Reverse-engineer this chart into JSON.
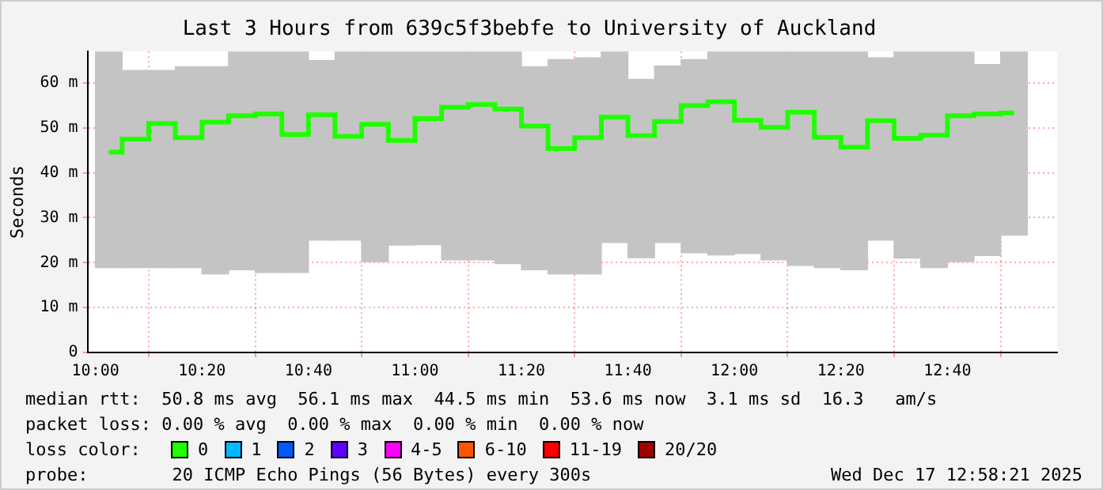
{
  "chart_data": {
    "type": "bar",
    "title": "Last 3 Hours from 639c5f3bebfe to University of Auckland",
    "ylabel": "Seconds",
    "x": [
      10.0417,
      10.125,
      10.2083,
      10.2917,
      10.375,
      10.4583,
      10.5417,
      10.625,
      10.7083,
      10.7917,
      10.875,
      10.9583,
      11.0417,
      11.125,
      11.2083,
      11.2917,
      11.375,
      11.4583,
      11.5417,
      11.625,
      11.7083,
      11.7917,
      11.875,
      11.9583,
      12.0417,
      12.125,
      12.2083,
      12.2917,
      12.375,
      12.4583,
      12.5417,
      12.625,
      12.7083,
      12.7917,
      12.875
    ],
    "series": [
      {
        "color": "#c4c4c4",
        "base": [
          18.9,
          18.9,
          18.9,
          18.9,
          17.5,
          18.4,
          17.8,
          17.8,
          25.0,
          25.0,
          20.2,
          23.9,
          24.0,
          20.6,
          20.6,
          19.8,
          18.4,
          17.5,
          17.5,
          24.5,
          21.1,
          24.5,
          22.2,
          21.7,
          22.0,
          20.6,
          19.4,
          18.9,
          18.4,
          25.0,
          21.0,
          18.9,
          20.2,
          21.6,
          26.1
        ],
        "values": [
          48.1,
          43.9,
          43.9,
          44.7,
          46.1,
          48.6,
          49.2,
          49.2,
          40.0,
          42.0,
          46.8,
          43.1,
          43.0,
          46.4,
          46.4,
          47.2,
          45.2,
          47.7,
          48.1,
          42.5,
          39.7,
          39.3,
          43.0,
          45.3,
          45.0,
          46.4,
          47.6,
          48.1,
          48.6,
          40.6,
          46.0,
          48.1,
          46.8,
          42.5,
          40.9
        ]
      },
      {
        "type": "step",
        "color": "#20ff00",
        "values": [
          44.6,
          47.5,
          51.0,
          47.8,
          51.3,
          52.7,
          53.1,
          48.5,
          52.9,
          48.1,
          50.8,
          47.2,
          52.1,
          54.6,
          55.2,
          54.2,
          50.4,
          45.4,
          47.8,
          52.4,
          48.3,
          51.4,
          55.0,
          55.8,
          51.7,
          50.1,
          53.5,
          47.9,
          45.7,
          51.6,
          47.7,
          48.4,
          52.7,
          53.1,
          53.3
        ]
      }
    ],
    "xlim": [
      9.975,
      13.01
    ],
    "xticks": [
      {
        "value": 10,
        "label": "10:00"
      },
      {
        "value": 10.3333,
        "label": "10:20"
      },
      {
        "value": 10.6667,
        "label": "10:40"
      },
      {
        "value": 11,
        "label": "11:00"
      },
      {
        "value": 11.3333,
        "label": "11:20"
      },
      {
        "value": 11.6667,
        "label": "11:40"
      },
      {
        "value": 12,
        "label": "12:00"
      },
      {
        "value": 12.3333,
        "label": "12:20"
      },
      {
        "value": 12.6667,
        "label": "12:40"
      }
    ],
    "ylim": [
      0,
      67
    ],
    "yticks": [
      0,
      {
        "value": 10,
        "label": "10 m"
      },
      {
        "value": 20,
        "label": "20 m"
      },
      {
        "value": 30,
        "label": "30 m"
      },
      {
        "value": 40,
        "label": "40 m"
      },
      {
        "value": 50,
        "label": "50 m"
      },
      {
        "value": 60,
        "label": "60 m"
      }
    ],
    "grid": true,
    "legend": false,
    "annotations": [
      "median rtt:  50.8 ms avg  56.1 ms max  44.5 ms min  53.6 ms now  3.1 ms sd  16.3   am/s",
      "packet loss: 0.00 % avg  0.00 % max  0.00 % min  0.00 % now",
      "loss color:",
      "0",
      "1",
      "2",
      "3",
      "4-5",
      "6-10",
      "11-19",
      "20/20",
      "probe:        20 ICMP Echo Pings (56 Bytes) every 300s",
      "Wed Dec 17 12:58:21 2025"
    ]
  }
}
